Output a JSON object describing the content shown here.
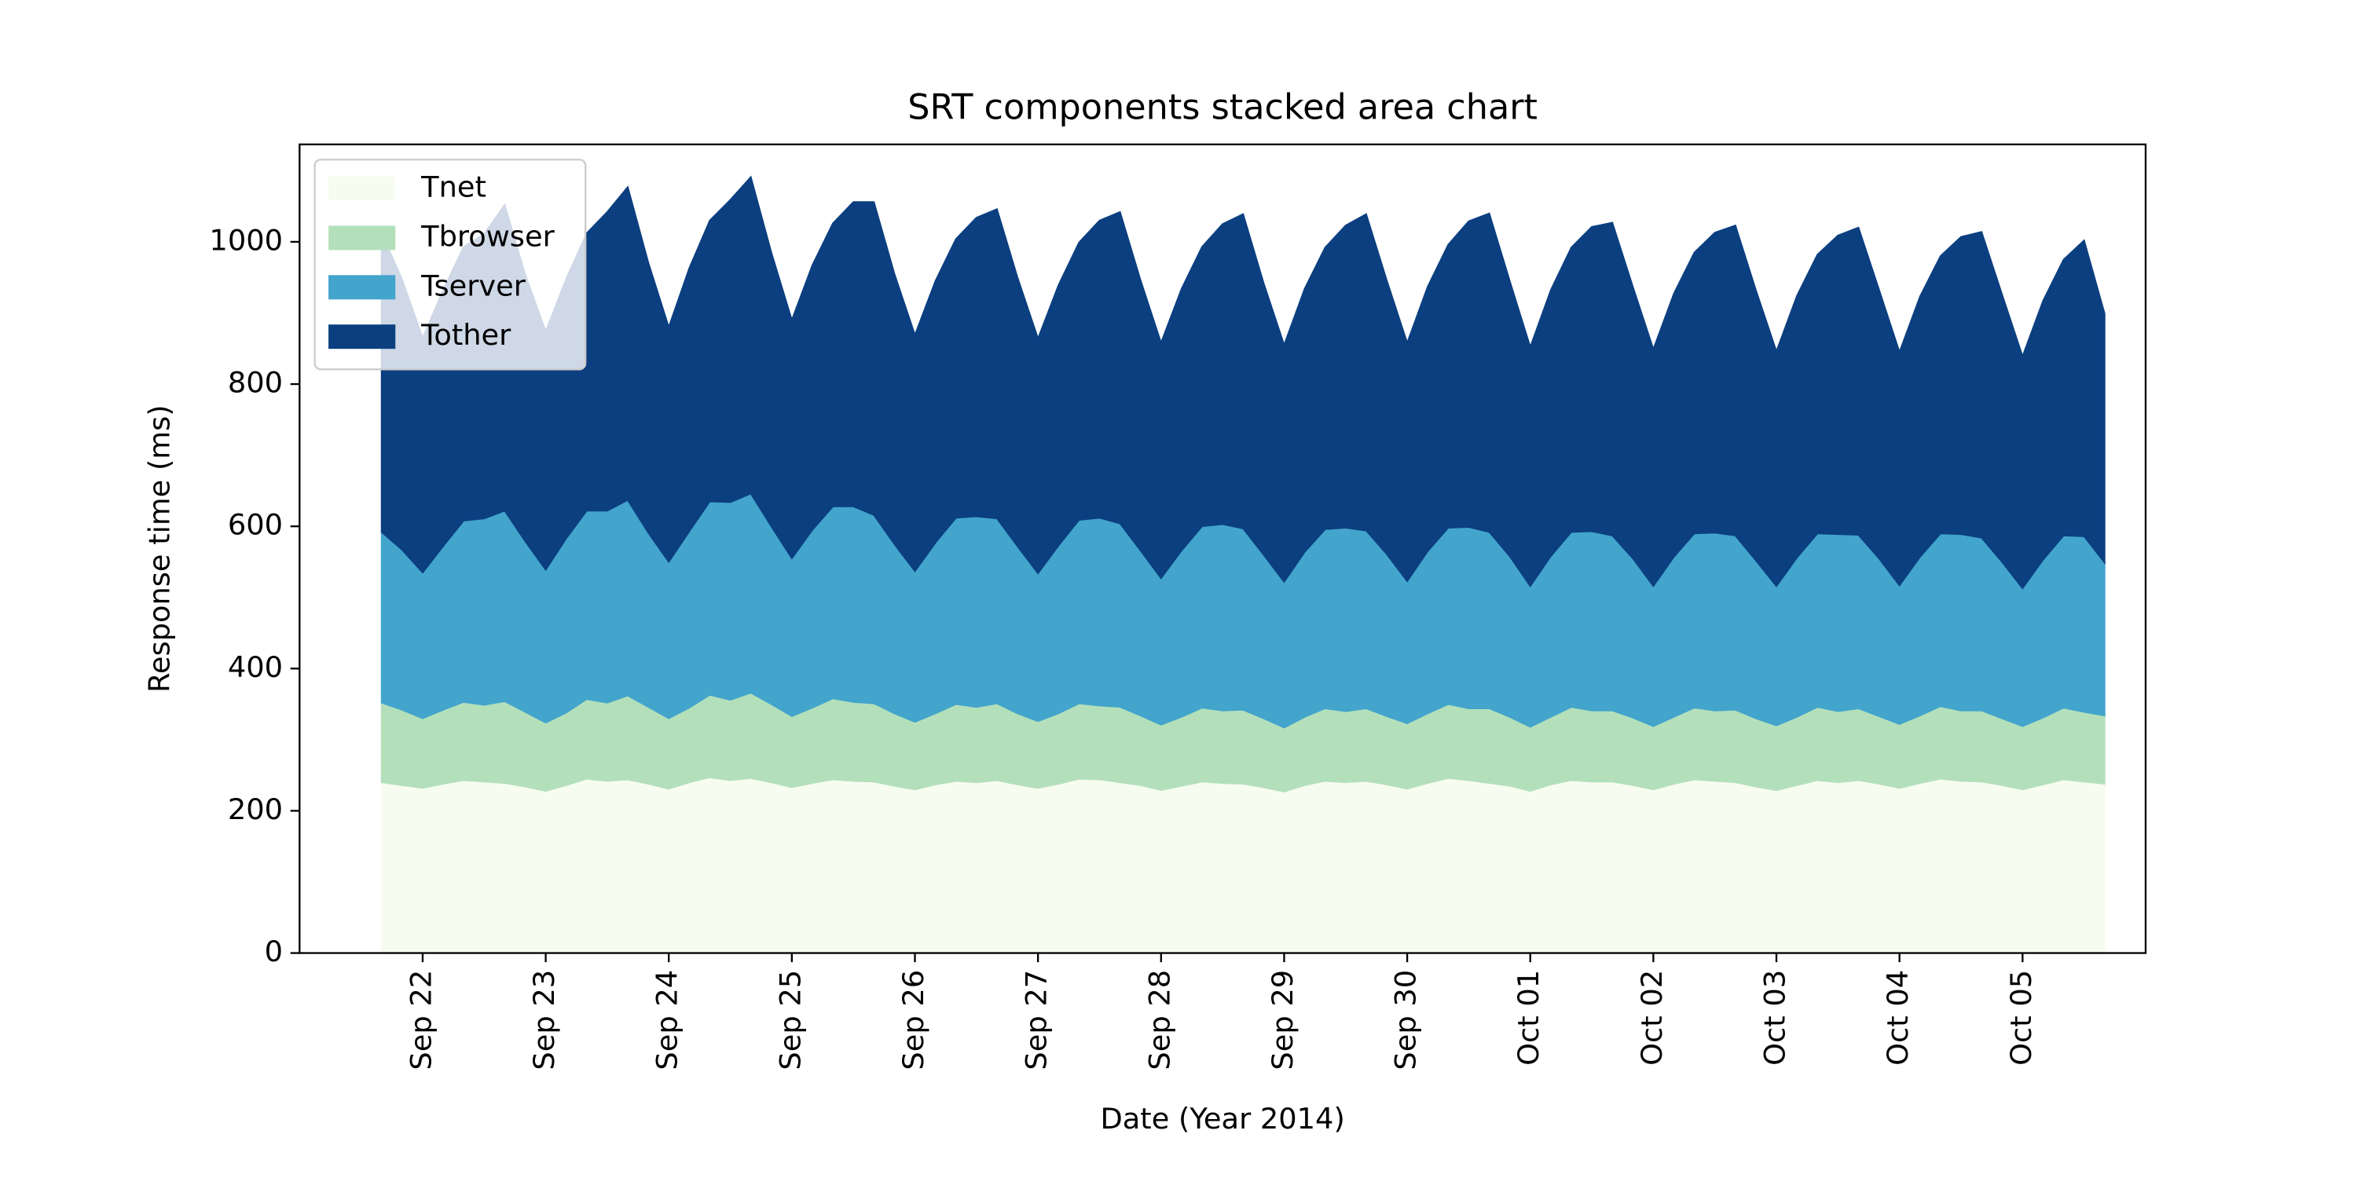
{
  "chart_data": {
    "type": "stacked_area",
    "title": "SRT components stacked area chart",
    "x_label": "Date (Year 2014)",
    "y_label": "Response time (ms)",
    "categories": [
      null,
      null,
      "Sep 22",
      null,
      null,
      null,
      null,
      null,
      "Sep 23",
      null,
      null,
      null,
      null,
      null,
      "Sep 24",
      null,
      null,
      null,
      null,
      null,
      "Sep 25",
      null,
      null,
      null,
      null,
      null,
      "Sep 26",
      null,
      null,
      null,
      null,
      null,
      "Sep 27",
      null,
      null,
      null,
      null,
      null,
      "Sep 28",
      null,
      null,
      null,
      null,
      null,
      "Sep 29",
      null,
      null,
      null,
      null,
      null,
      "Sep 30",
      null,
      null,
      null,
      null,
      null,
      "Oct 01",
      null,
      null,
      null,
      null,
      null,
      "Oct 02",
      null,
      null,
      null,
      null,
      null,
      "Oct 03",
      null,
      null,
      null,
      null,
      null,
      "Oct 04",
      null,
      null,
      null,
      null,
      null,
      "Oct 05",
      null,
      null,
      null,
      null
    ],
    "series": [
      {
        "name": "Tnet",
        "color": "#f7fcf0",
        "values": [
          240,
          236,
          232,
          238,
          243,
          241,
          239,
          234,
          228,
          236,
          245,
          242,
          244,
          238,
          231,
          240,
          247,
          243,
          246,
          240,
          233,
          239,
          244,
          242,
          241,
          235,
          230,
          237,
          242,
          240,
          243,
          237,
          232,
          238,
          245,
          244,
          240,
          236,
          229,
          235,
          241,
          239,
          238,
          233,
          227,
          236,
          242,
          240,
          242,
          237,
          231,
          239,
          246,
          243,
          239,
          235,
          228,
          237,
          243,
          241,
          241,
          236,
          230,
          238,
          244,
          242,
          240,
          234,
          229,
          236,
          243,
          240,
          243,
          238,
          232,
          239,
          245,
          242,
          241,
          236,
          230,
          237,
          244,
          241,
          238
        ]
      },
      {
        "name": "Tbrowser",
        "color": "#b3e0bb",
        "values": [
          112,
          106,
          98,
          104,
          110,
          108,
          115,
          105,
          96,
          102,
          112,
          110,
          118,
          108,
          99,
          105,
          116,
          113,
          120,
          110,
          100,
          106,
          114,
          111,
          110,
          102,
          95,
          100,
          108,
          106,
          108,
          100,
          94,
          99,
          106,
          104,
          106,
          98,
          92,
          97,
          104,
          102,
          104,
          97,
          90,
          96,
          102,
          100,
          102,
          96,
          92,
          98,
          104,
          101,
          105,
          97,
          90,
          95,
          103,
          100,
          100,
          95,
          89,
          94,
          101,
          99,
          102,
          96,
          91,
          96,
          103,
          100,
          101,
          95,
          90,
          95,
          102,
          99,
          100,
          94,
          89,
          94,
          101,
          98,
          96
        ]
      },
      {
        "name": "Tserver",
        "color": "#43a4cc",
        "values": [
          240,
          225,
          205,
          230,
          255,
          262,
          268,
          240,
          215,
          245,
          265,
          270,
          275,
          245,
          220,
          248,
          272,
          278,
          280,
          250,
          222,
          250,
          270,
          275,
          265,
          238,
          212,
          240,
          262,
          268,
          260,
          235,
          208,
          236,
          258,
          264,
          258,
          232,
          206,
          234,
          255,
          262,
          255,
          230,
          205,
          232,
          252,
          258,
          250,
          228,
          200,
          228,
          248,
          255,
          248,
          226,
          198,
          226,
          246,
          252,
          246,
          224,
          197,
          225,
          245,
          250,
          245,
          222,
          196,
          224,
          244,
          249,
          244,
          222,
          195,
          223,
          243,
          248,
          243,
          220,
          194,
          222,
          242,
          247,
          215
        ]
      },
      {
        "name": "Tother",
        "color": "#0b3f80",
        "values": [
          420,
          380,
          330,
          360,
          385,
          400,
          430,
          375,
          335,
          365,
          390,
          420,
          440,
          380,
          330,
          370,
          395,
          425,
          445,
          385,
          335,
          372,
          398,
          428,
          440,
          380,
          332,
          368,
          392,
          420,
          435,
          378,
          330,
          366,
          390,
          418,
          438,
          380,
          331,
          368,
          393,
          422,
          442,
          382,
          333,
          370,
          396,
          425,
          445,
          385,
          335,
          372,
          398,
          430,
          448,
          387,
          336,
          374,
          400,
          428,
          440,
          382,
          333,
          370,
          395,
          422,
          436,
          380,
          330,
          368,
          392,
          420,
          432,
          378,
          328,
          366,
          390,
          418,
          430,
          376,
          326,
          364,
          388,
          416,
          350
        ]
      }
    ],
    "ylim": [
      0,
      1137
    ],
    "yticks": [
      0,
      200,
      400,
      600,
      800,
      1000
    ],
    "legend": "upper left"
  }
}
